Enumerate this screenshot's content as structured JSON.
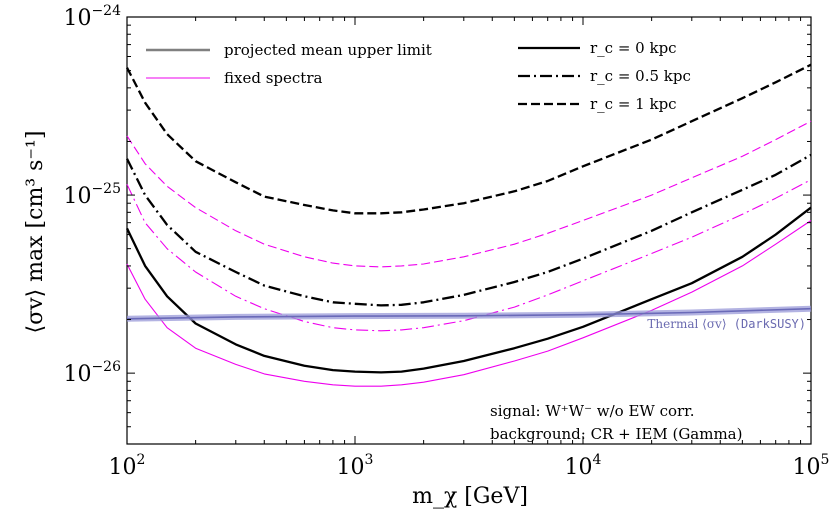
{
  "chart_data": {
    "type": "line",
    "xscale": "log",
    "yscale": "log",
    "xlim": [
      100,
      100000
    ],
    "ylim": [
      4e-27,
      1e-24
    ],
    "grid": false,
    "xlabel": "m_χ [GeV]",
    "ylabel": "⟨σv⟩ max [cm³ s⁻¹]",
    "xticks": [
      {
        "value": 100,
        "base": "10",
        "exp": "2"
      },
      {
        "value": 1000,
        "base": "10",
        "exp": "3"
      },
      {
        "value": 10000,
        "base": "10",
        "exp": "4"
      },
      {
        "value": 100000,
        "base": "10",
        "exp": "5"
      }
    ],
    "yticks": [
      {
        "value": 1e-24,
        "base": "10",
        "exp": "−24"
      },
      {
        "value": 1e-25,
        "base": "10",
        "exp": "−25"
      },
      {
        "value": 1e-26,
        "base": "10",
        "exp": "−26"
      }
    ],
    "legend_left": [
      {
        "label": "projected mean upper limit",
        "color": "#808080",
        "style": "solid"
      },
      {
        "label": "fixed spectra",
        "color": "#ee00ee",
        "style": "solid-thin"
      }
    ],
    "legend_right": [
      {
        "label": "r_c = 0 kpc",
        "math": "r",
        "sub": "c",
        "rest": " = 0 kpc",
        "style": "solid"
      },
      {
        "label": "r_c = 0.5 kpc",
        "math": "r",
        "sub": "c",
        "rest": " = 0.5 kpc",
        "style": "dashdot"
      },
      {
        "label": "r_c = 1 kpc",
        "math": "r",
        "sub": "c",
        "rest": " = 1 kpc",
        "style": "dashed"
      }
    ],
    "series": [
      {
        "group": "projected",
        "style": "dashed",
        "color": "#000000",
        "x": [
          100,
          120,
          150,
          200,
          300,
          400,
          600,
          800,
          1000,
          1300,
          1600,
          2000,
          3000,
          5000,
          7000,
          10000,
          20000,
          30000,
          50000,
          70000,
          100000
        ],
        "y": [
          5.2e-25,
          3.3e-25,
          2.2e-25,
          1.55e-25,
          1.18e-25,
          9.8e-26,
          8.8e-26,
          8.2e-26,
          7.9e-26,
          7.9e-26,
          8e-26,
          8.3e-26,
          9e-26,
          1.05e-25,
          1.2e-25,
          1.45e-25,
          2.05e-25,
          2.6e-25,
          3.5e-25,
          4.3e-25,
          5.4e-25
        ]
      },
      {
        "group": "projected",
        "style": "dashdot",
        "color": "#000000",
        "x": [
          100,
          120,
          150,
          200,
          300,
          400,
          600,
          800,
          1000,
          1300,
          1600,
          2000,
          3000,
          5000,
          7000,
          10000,
          20000,
          30000,
          50000,
          70000,
          100000
        ],
        "y": [
          1.6e-25,
          1e-25,
          6.8e-26,
          4.8e-26,
          3.7e-26,
          3.1e-26,
          2.7e-26,
          2.5e-26,
          2.45e-26,
          2.4e-26,
          2.42e-26,
          2.5e-26,
          2.75e-26,
          3.25e-26,
          3.7e-26,
          4.4e-26,
          6.3e-26,
          8e-26,
          1.07e-25,
          1.3e-25,
          1.68e-25
        ]
      },
      {
        "group": "projected",
        "style": "solid",
        "color": "#000000",
        "x": [
          100,
          120,
          150,
          200,
          300,
          400,
          600,
          800,
          1000,
          1300,
          1600,
          2000,
          3000,
          5000,
          7000,
          10000,
          20000,
          30000,
          50000,
          70000,
          100000
        ],
        "y": [
          6.5e-26,
          4e-26,
          2.7e-26,
          1.9e-26,
          1.45e-26,
          1.25e-26,
          1.1e-26,
          1.04e-26,
          1.02e-26,
          1.01e-26,
          1.02e-26,
          1.06e-26,
          1.17e-26,
          1.38e-26,
          1.56e-26,
          1.82e-26,
          2.6e-26,
          3.2e-26,
          4.5e-26,
          6e-26,
          8.5e-26
        ]
      },
      {
        "group": "fixed",
        "style": "dashed",
        "color": "#ee00ee",
        "x": [
          100,
          120,
          150,
          200,
          300,
          400,
          600,
          800,
          1000,
          1300,
          1600,
          2000,
          3000,
          5000,
          7000,
          10000,
          20000,
          30000,
          50000,
          70000,
          100000
        ],
        "y": [
          2.15e-25,
          1.5e-25,
          1.12e-25,
          8.5e-26,
          6.3e-26,
          5.3e-26,
          4.5e-26,
          4.15e-26,
          4e-26,
          3.95e-26,
          4e-26,
          4.1e-26,
          4.5e-26,
          5.3e-26,
          6.1e-26,
          7.2e-26,
          1e-25,
          1.25e-25,
          1.65e-25,
          2.05e-25,
          2.6e-25
        ]
      },
      {
        "group": "fixed",
        "style": "dashdot",
        "color": "#ee00ee",
        "x": [
          100,
          120,
          150,
          200,
          300,
          400,
          600,
          800,
          1000,
          1300,
          1600,
          2000,
          3000,
          5000,
          7000,
          10000,
          20000,
          30000,
          50000,
          70000,
          100000
        ],
        "y": [
          1.15e-25,
          7e-26,
          5e-26,
          3.7e-26,
          2.7e-26,
          2.3e-26,
          1.95e-26,
          1.8e-26,
          1.75e-26,
          1.73e-26,
          1.75e-26,
          1.8e-26,
          1.97e-26,
          2.35e-26,
          2.75e-26,
          3.3e-26,
          4.7e-26,
          5.8e-26,
          7.8e-26,
          9.6e-26,
          1.22e-25
        ]
      },
      {
        "group": "fixed",
        "style": "solid",
        "color": "#ee00ee",
        "x": [
          100,
          120,
          150,
          200,
          300,
          400,
          600,
          800,
          1000,
          1300,
          1600,
          2000,
          3000,
          5000,
          7000,
          10000,
          20000,
          30000,
          50000,
          70000,
          100000
        ],
        "y": [
          4.1e-26,
          2.6e-26,
          1.8e-26,
          1.38e-26,
          1.12e-26,
          9.9e-27,
          9e-27,
          8.6e-27,
          8.45e-27,
          8.45e-27,
          8.6e-27,
          8.9e-27,
          9.8e-27,
          1.17e-26,
          1.33e-26,
          1.58e-26,
          2.25e-26,
          2.85e-26,
          4e-26,
          5.3e-26,
          7.2e-26
        ]
      },
      {
        "group": "thermal",
        "style": "band",
        "color": "#6a6ab8",
        "x": [
          100,
          300,
          1000,
          3000,
          10000,
          30000,
          100000
        ],
        "y": [
          2.02e-26,
          2.07e-26,
          2.09e-26,
          2.1e-26,
          2.13e-26,
          2.19e-26,
          2.3e-26
        ]
      }
    ],
    "thermal_label": {
      "prefix": "Thermal ",
      "mid": "⟨σv⟩",
      "suffix": " (DarkSUSY)"
    },
    "annotations": [
      {
        "text": "signal: W⁺W⁻ w/o EW corr."
      },
      {
        "text": "background: CR + IEM (Gamma)"
      }
    ],
    "colors": {
      "projected": "#000000",
      "fixed": "#ee00ee",
      "thermal": "#6a6ab8",
      "legend_mean": "#808080"
    }
  }
}
